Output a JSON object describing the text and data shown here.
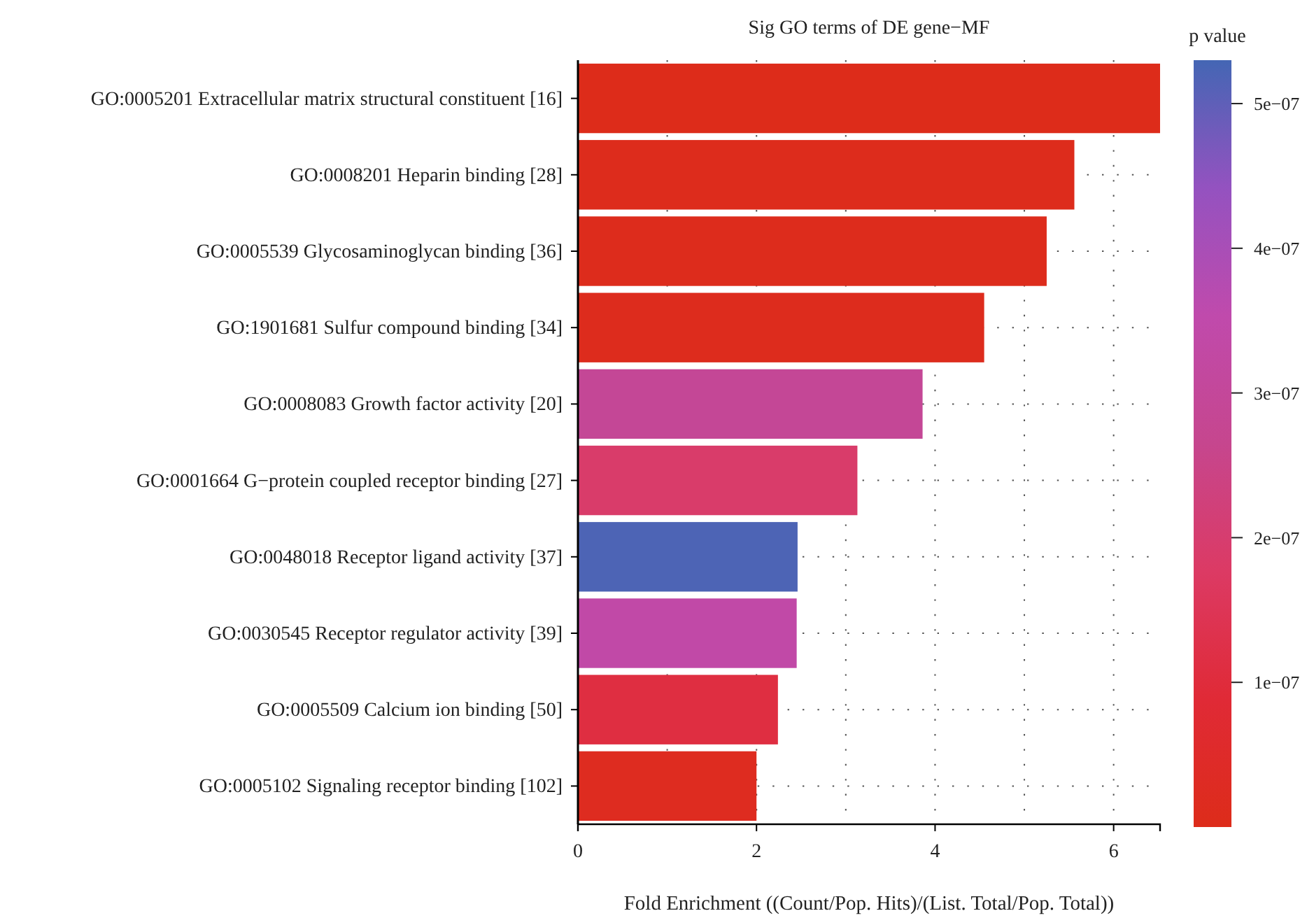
{
  "chart_data": {
    "type": "bar",
    "orientation": "horizontal",
    "title": "Sig GO terms of DE gene−MF",
    "xlabel": "Fold Enrichment ((Count/Pop. Hits)/(List. Total/Pop. Total))",
    "clabel": "p value",
    "categories": [
      "GO:0005201 Extracellular matrix structural constituent [16]",
      "GO:0008201 Heparin binding [28]",
      "GO:0005539 Glycosaminoglycan binding [36]",
      "GO:1901681 Sulfur compound binding [34]",
      "GO:0008083 Growth factor activity [20]",
      "GO:0001664 G−protein coupled receptor binding [27]",
      "GO:0048018 Receptor ligand activity [37]",
      "GO:0030545 Receptor regulator activity [39]",
      "GO:0005509 Calcium ion binding [50]",
      "GO:0005102 Signaling receptor binding [102]"
    ],
    "values": [
      6.52,
      5.56,
      5.25,
      4.55,
      3.86,
      3.13,
      2.46,
      2.45,
      2.24,
      2.0
    ],
    "cvalues": [
      1e-09,
      5e-09,
      5e-09,
      1e-08,
      2.9e-07,
      1.9e-07,
      5.2e-07,
      3.4e-07,
      1.1e-07,
      2e-08
    ],
    "xlim": [
      0,
      6.52
    ],
    "xticks": [
      0,
      2,
      4,
      6
    ],
    "clim": [
      0,
      5.3e-07
    ],
    "cticks": [
      {
        "value": 1e-07,
        "label": "1e−07"
      },
      {
        "value": 2e-07,
        "label": "2e−07"
      },
      {
        "value": 3e-07,
        "label": "3e−07"
      },
      {
        "value": 4e-07,
        "label": "4e−07"
      },
      {
        "value": 5e-07,
        "label": "5e−07"
      }
    ],
    "grid": true
  }
}
